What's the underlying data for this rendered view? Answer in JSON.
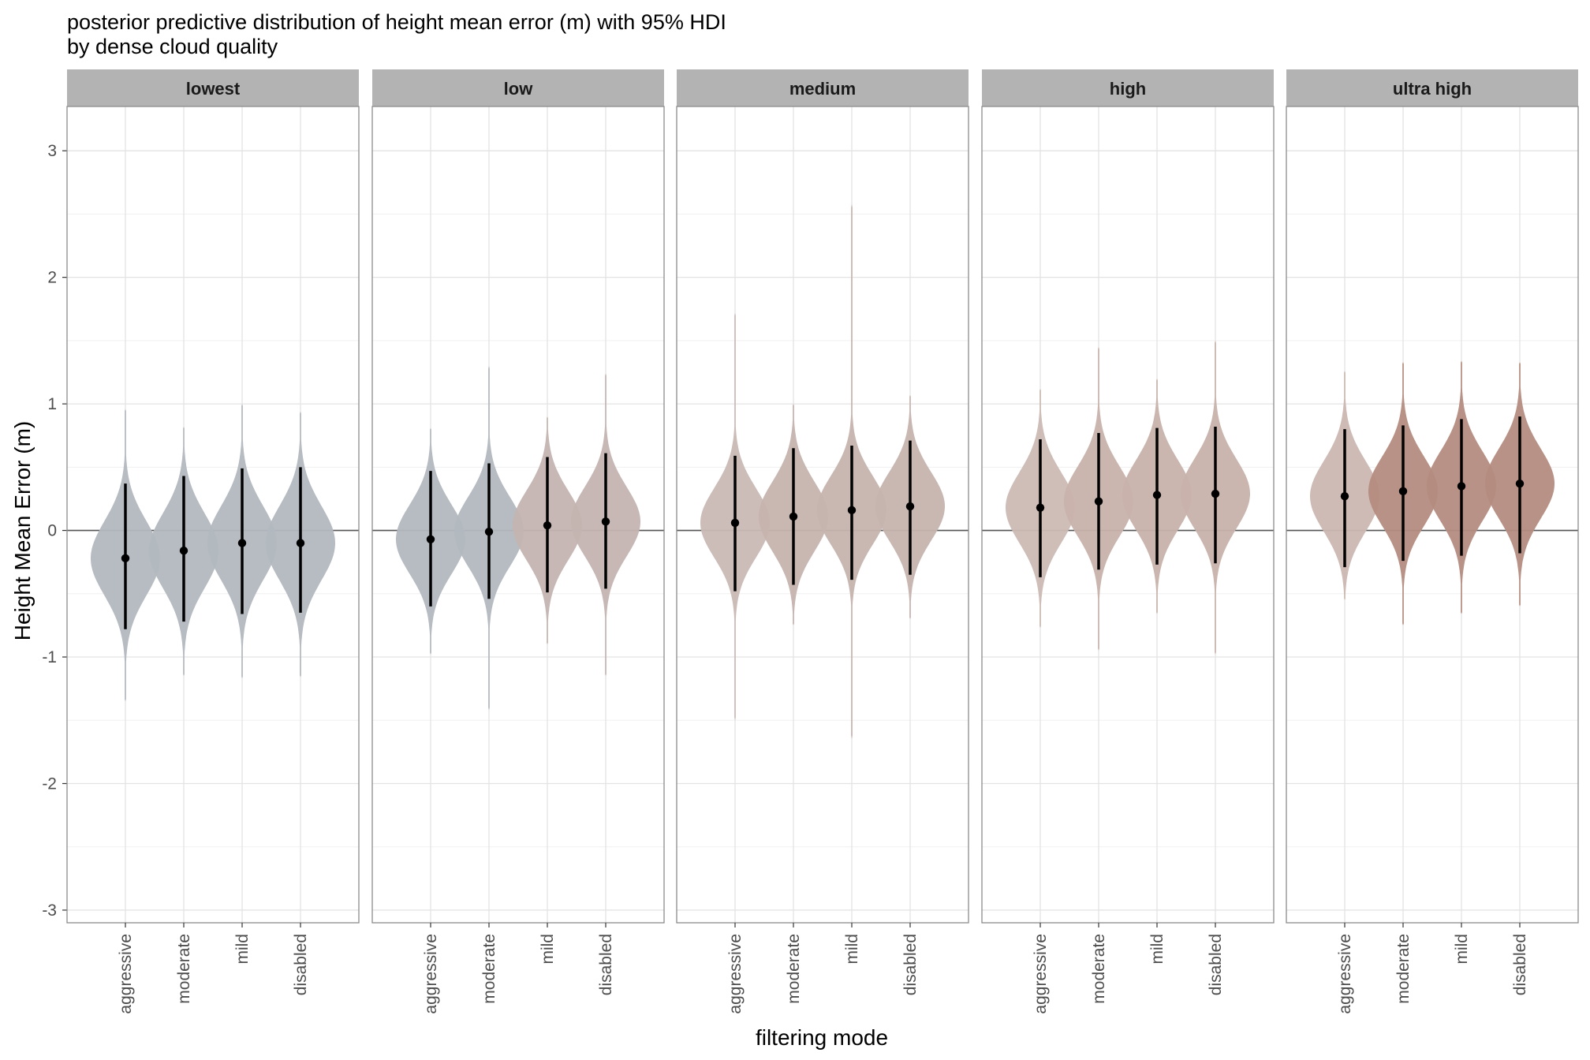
{
  "chart_data": {
    "type": "violin",
    "title": "posterior predictive distribution of height mean error (m) with 95% HDI",
    "subtitle": "by dense cloud quality",
    "xlabel": "filtering mode",
    "ylabel": "Height Mean Error (m)",
    "ylim": [
      -3.1,
      3.35
    ],
    "yticks": [
      -3,
      -2,
      -1,
      0,
      1,
      2,
      3
    ],
    "reference_line_y": 0,
    "grid": true,
    "facet_by": "dense cloud quality",
    "categories": [
      "aggressive",
      "moderate",
      "mild",
      "disabled"
    ],
    "panels": [
      {
        "name": "lowest",
        "series": [
          {
            "category": "aggressive",
            "median": -0.22,
            "hdi": [
              -0.78,
              0.37
            ],
            "tail": [
              -1.35,
              0.96
            ],
            "color": "#b2b8bf"
          },
          {
            "category": "moderate",
            "median": -0.16,
            "hdi": [
              -0.72,
              0.43
            ],
            "tail": [
              -1.15,
              0.82
            ],
            "color": "#b2b8bf"
          },
          {
            "category": "mild",
            "median": -0.1,
            "hdi": [
              -0.66,
              0.49
            ],
            "tail": [
              -1.17,
              1.0
            ],
            "color": "#b2b8bf"
          },
          {
            "category": "disabled",
            "median": -0.1,
            "hdi": [
              -0.65,
              0.5
            ],
            "tail": [
              -1.16,
              0.94
            ],
            "color": "#b2b8bf"
          }
        ]
      },
      {
        "name": "low",
        "series": [
          {
            "category": "aggressive",
            "median": -0.07,
            "hdi": [
              -0.6,
              0.47
            ],
            "tail": [
              -0.98,
              0.81
            ],
            "color": "#b2b8bf"
          },
          {
            "category": "moderate",
            "median": -0.01,
            "hdi": [
              -0.54,
              0.53
            ],
            "tail": [
              -1.42,
              1.3
            ],
            "color": "#b2b8bf"
          },
          {
            "category": "mild",
            "median": 0.04,
            "hdi": [
              -0.49,
              0.58
            ],
            "tail": [
              -0.9,
              0.9
            ],
            "color": "#c4b4b1"
          },
          {
            "category": "disabled",
            "median": 0.07,
            "hdi": [
              -0.46,
              0.61
            ],
            "tail": [
              -1.15,
              1.24
            ],
            "color": "#c4b4b1"
          }
        ]
      },
      {
        "name": "medium",
        "series": [
          {
            "category": "aggressive",
            "median": 0.06,
            "hdi": [
              -0.48,
              0.59
            ],
            "tail": [
              -1.5,
              1.72
            ],
            "color": "#c9b9b5"
          },
          {
            "category": "moderate",
            "median": 0.11,
            "hdi": [
              -0.43,
              0.65
            ],
            "tail": [
              -0.75,
              1.0
            ],
            "color": "#c6b3ae"
          },
          {
            "category": "mild",
            "median": 0.16,
            "hdi": [
              -0.39,
              0.67
            ],
            "tail": [
              -1.65,
              2.58
            ],
            "color": "#c6b3ae"
          },
          {
            "category": "disabled",
            "median": 0.19,
            "hdi": [
              -0.35,
              0.71
            ],
            "tail": [
              -0.7,
              1.07
            ],
            "color": "#c6b3ae"
          }
        ]
      },
      {
        "name": "high",
        "series": [
          {
            "category": "aggressive",
            "median": 0.18,
            "hdi": [
              -0.37,
              0.72
            ],
            "tail": [
              -0.77,
              1.12
            ],
            "color": "#ccb9b4"
          },
          {
            "category": "moderate",
            "median": 0.23,
            "hdi": [
              -0.31,
              0.77
            ],
            "tail": [
              -0.95,
              1.45
            ],
            "color": "#c8b2ab"
          },
          {
            "category": "mild",
            "median": 0.28,
            "hdi": [
              -0.27,
              0.81
            ],
            "tail": [
              -0.66,
              1.2
            ],
            "color": "#c8b2ab"
          },
          {
            "category": "disabled",
            "median": 0.29,
            "hdi": [
              -0.26,
              0.82
            ],
            "tail": [
              -0.98,
              1.5
            ],
            "color": "#c8b2ab"
          }
        ]
      },
      {
        "name": "ultra high",
        "series": [
          {
            "category": "aggressive",
            "median": 0.27,
            "hdi": [
              -0.29,
              0.8
            ],
            "tail": [
              -0.55,
              1.26
            ],
            "color": "#ccb7b1"
          },
          {
            "category": "moderate",
            "median": 0.31,
            "hdi": [
              -0.24,
              0.83
            ],
            "tail": [
              -0.75,
              1.33
            ],
            "color": "#b48c80"
          },
          {
            "category": "mild",
            "median": 0.35,
            "hdi": [
              -0.2,
              0.88
            ],
            "tail": [
              -0.66,
              1.34
            ],
            "color": "#b48c80"
          },
          {
            "category": "disabled",
            "median": 0.37,
            "hdi": [
              -0.18,
              0.9
            ],
            "tail": [
              -0.6,
              1.33
            ],
            "color": "#b48c80"
          }
        ]
      }
    ]
  }
}
